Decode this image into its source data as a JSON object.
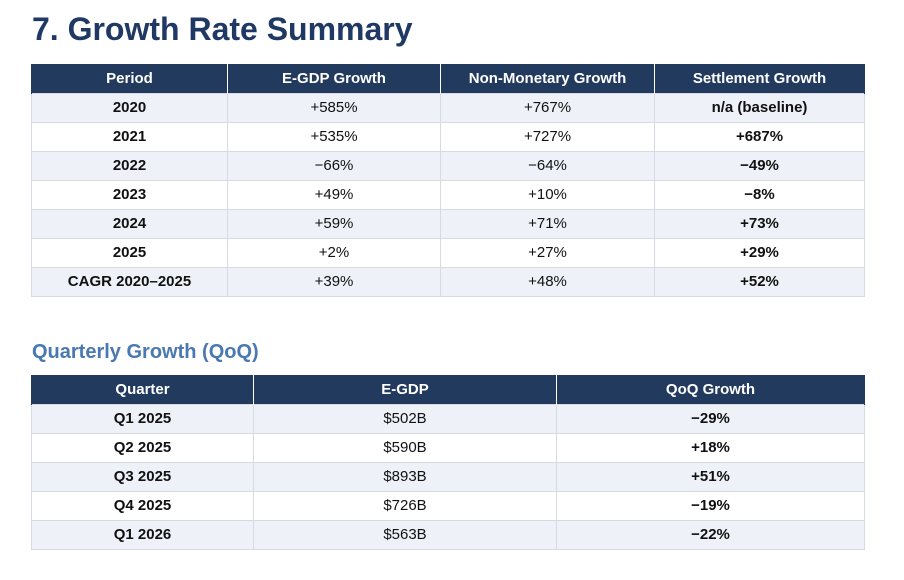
{
  "page_title": "7. Growth Rate Summary",
  "growth_table": {
    "headers": [
      "Period",
      "E-GDP Growth",
      "Non-Monetary Growth",
      "Settlement Growth"
    ],
    "rows": [
      [
        "2020",
        "+585%",
        "+767%",
        "n/a (baseline)"
      ],
      [
        "2021",
        "+535%",
        "+727%",
        "+687%"
      ],
      [
        "2022",
        "−66%",
        "−64%",
        "−49%"
      ],
      [
        "2023",
        "+49%",
        "+10%",
        "−8%"
      ],
      [
        "2024",
        "+59%",
        "+71%",
        "+73%"
      ],
      [
        "2025",
        "+2%",
        "+27%",
        "+29%"
      ],
      [
        "CAGR 2020–2025",
        "+39%",
        "+48%",
        "+52%"
      ]
    ]
  },
  "qoq_section": {
    "title": "Quarterly Growth (QoQ)",
    "headers": [
      "Quarter",
      "E-GDP",
      "QoQ Growth"
    ],
    "rows": [
      [
        "Q1 2025",
        "$502B",
        "−29%"
      ],
      [
        "Q2 2025",
        "$590B",
        "+18%"
      ],
      [
        "Q3 2025",
        "$893B",
        "+51%"
      ],
      [
        "Q4 2025",
        "$726B",
        "−19%"
      ],
      [
        "Q1 2026",
        "$563B",
        "−22%"
      ]
    ]
  }
}
